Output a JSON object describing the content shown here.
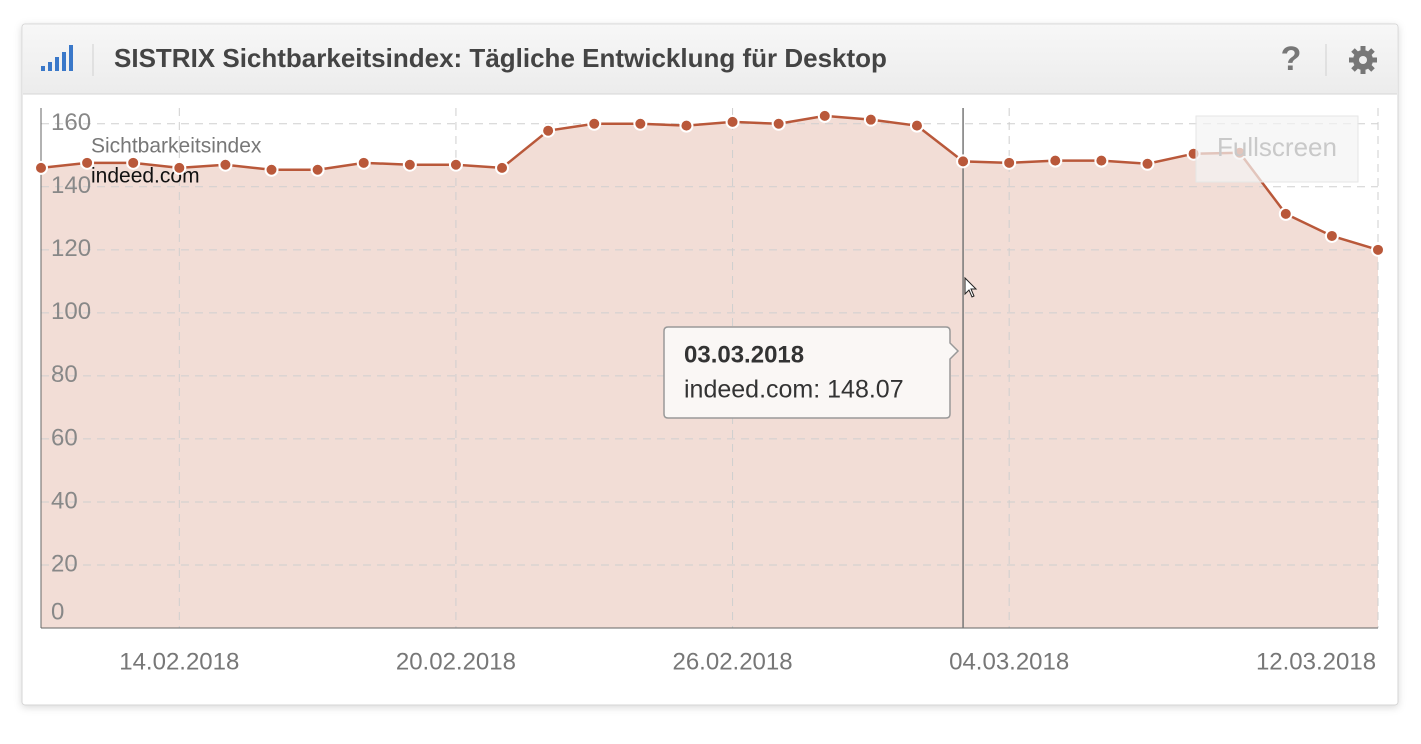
{
  "header": {
    "title": "SISTRIX Sichtbarkeitsindex: Tägliche Entwicklung für Desktop"
  },
  "fullscreen_button": "Fullscreen",
  "chart_data": {
    "type": "area",
    "y_label": "Sichtbarkeitsindex",
    "x": [
      "11.02.2018",
      "12.02.2018",
      "13.02.2018",
      "14.02.2018",
      "15.02.2018",
      "16.02.2018",
      "17.02.2018",
      "18.02.2018",
      "19.02.2018",
      "20.02.2018",
      "21.02.2018",
      "22.02.2018",
      "23.02.2018",
      "24.02.2018",
      "25.02.2018",
      "26.02.2018",
      "27.02.2018",
      "28.02.2018",
      "01.03.2018",
      "02.03.2018",
      "03.03.2018",
      "04.03.2018",
      "05.03.2018",
      "06.03.2018",
      "07.03.2018",
      "08.03.2018",
      "09.03.2018",
      "10.03.2018",
      "11.03.2018",
      "12.03.2018"
    ],
    "series": [
      {
        "name": "indeed.com",
        "color": "#b9583a",
        "values": [
          146.0,
          147.6,
          147.6,
          146.0,
          147.0,
          145.4,
          145.4,
          147.6,
          147.0,
          147.0,
          146.0,
          157.8,
          160.0,
          160.0,
          159.4,
          160.6,
          160.0,
          162.5,
          161.3,
          159.4,
          148.07,
          147.6,
          148.3,
          148.3,
          147.3,
          150.5,
          150.8,
          131.4,
          124.4,
          120.0
        ]
      }
    ],
    "ylim": [
      0,
      165
    ],
    "yticks": [
      0,
      20,
      40,
      60,
      80,
      100,
      120,
      140,
      160
    ],
    "xticks": [
      "14.02.2018",
      "20.02.2018",
      "26.02.2018",
      "04.03.2018",
      "12.03.2018"
    ],
    "grid": true,
    "tooltip": {
      "title": "03.03.2018",
      "label": "indeed.com: 148.07"
    }
  }
}
